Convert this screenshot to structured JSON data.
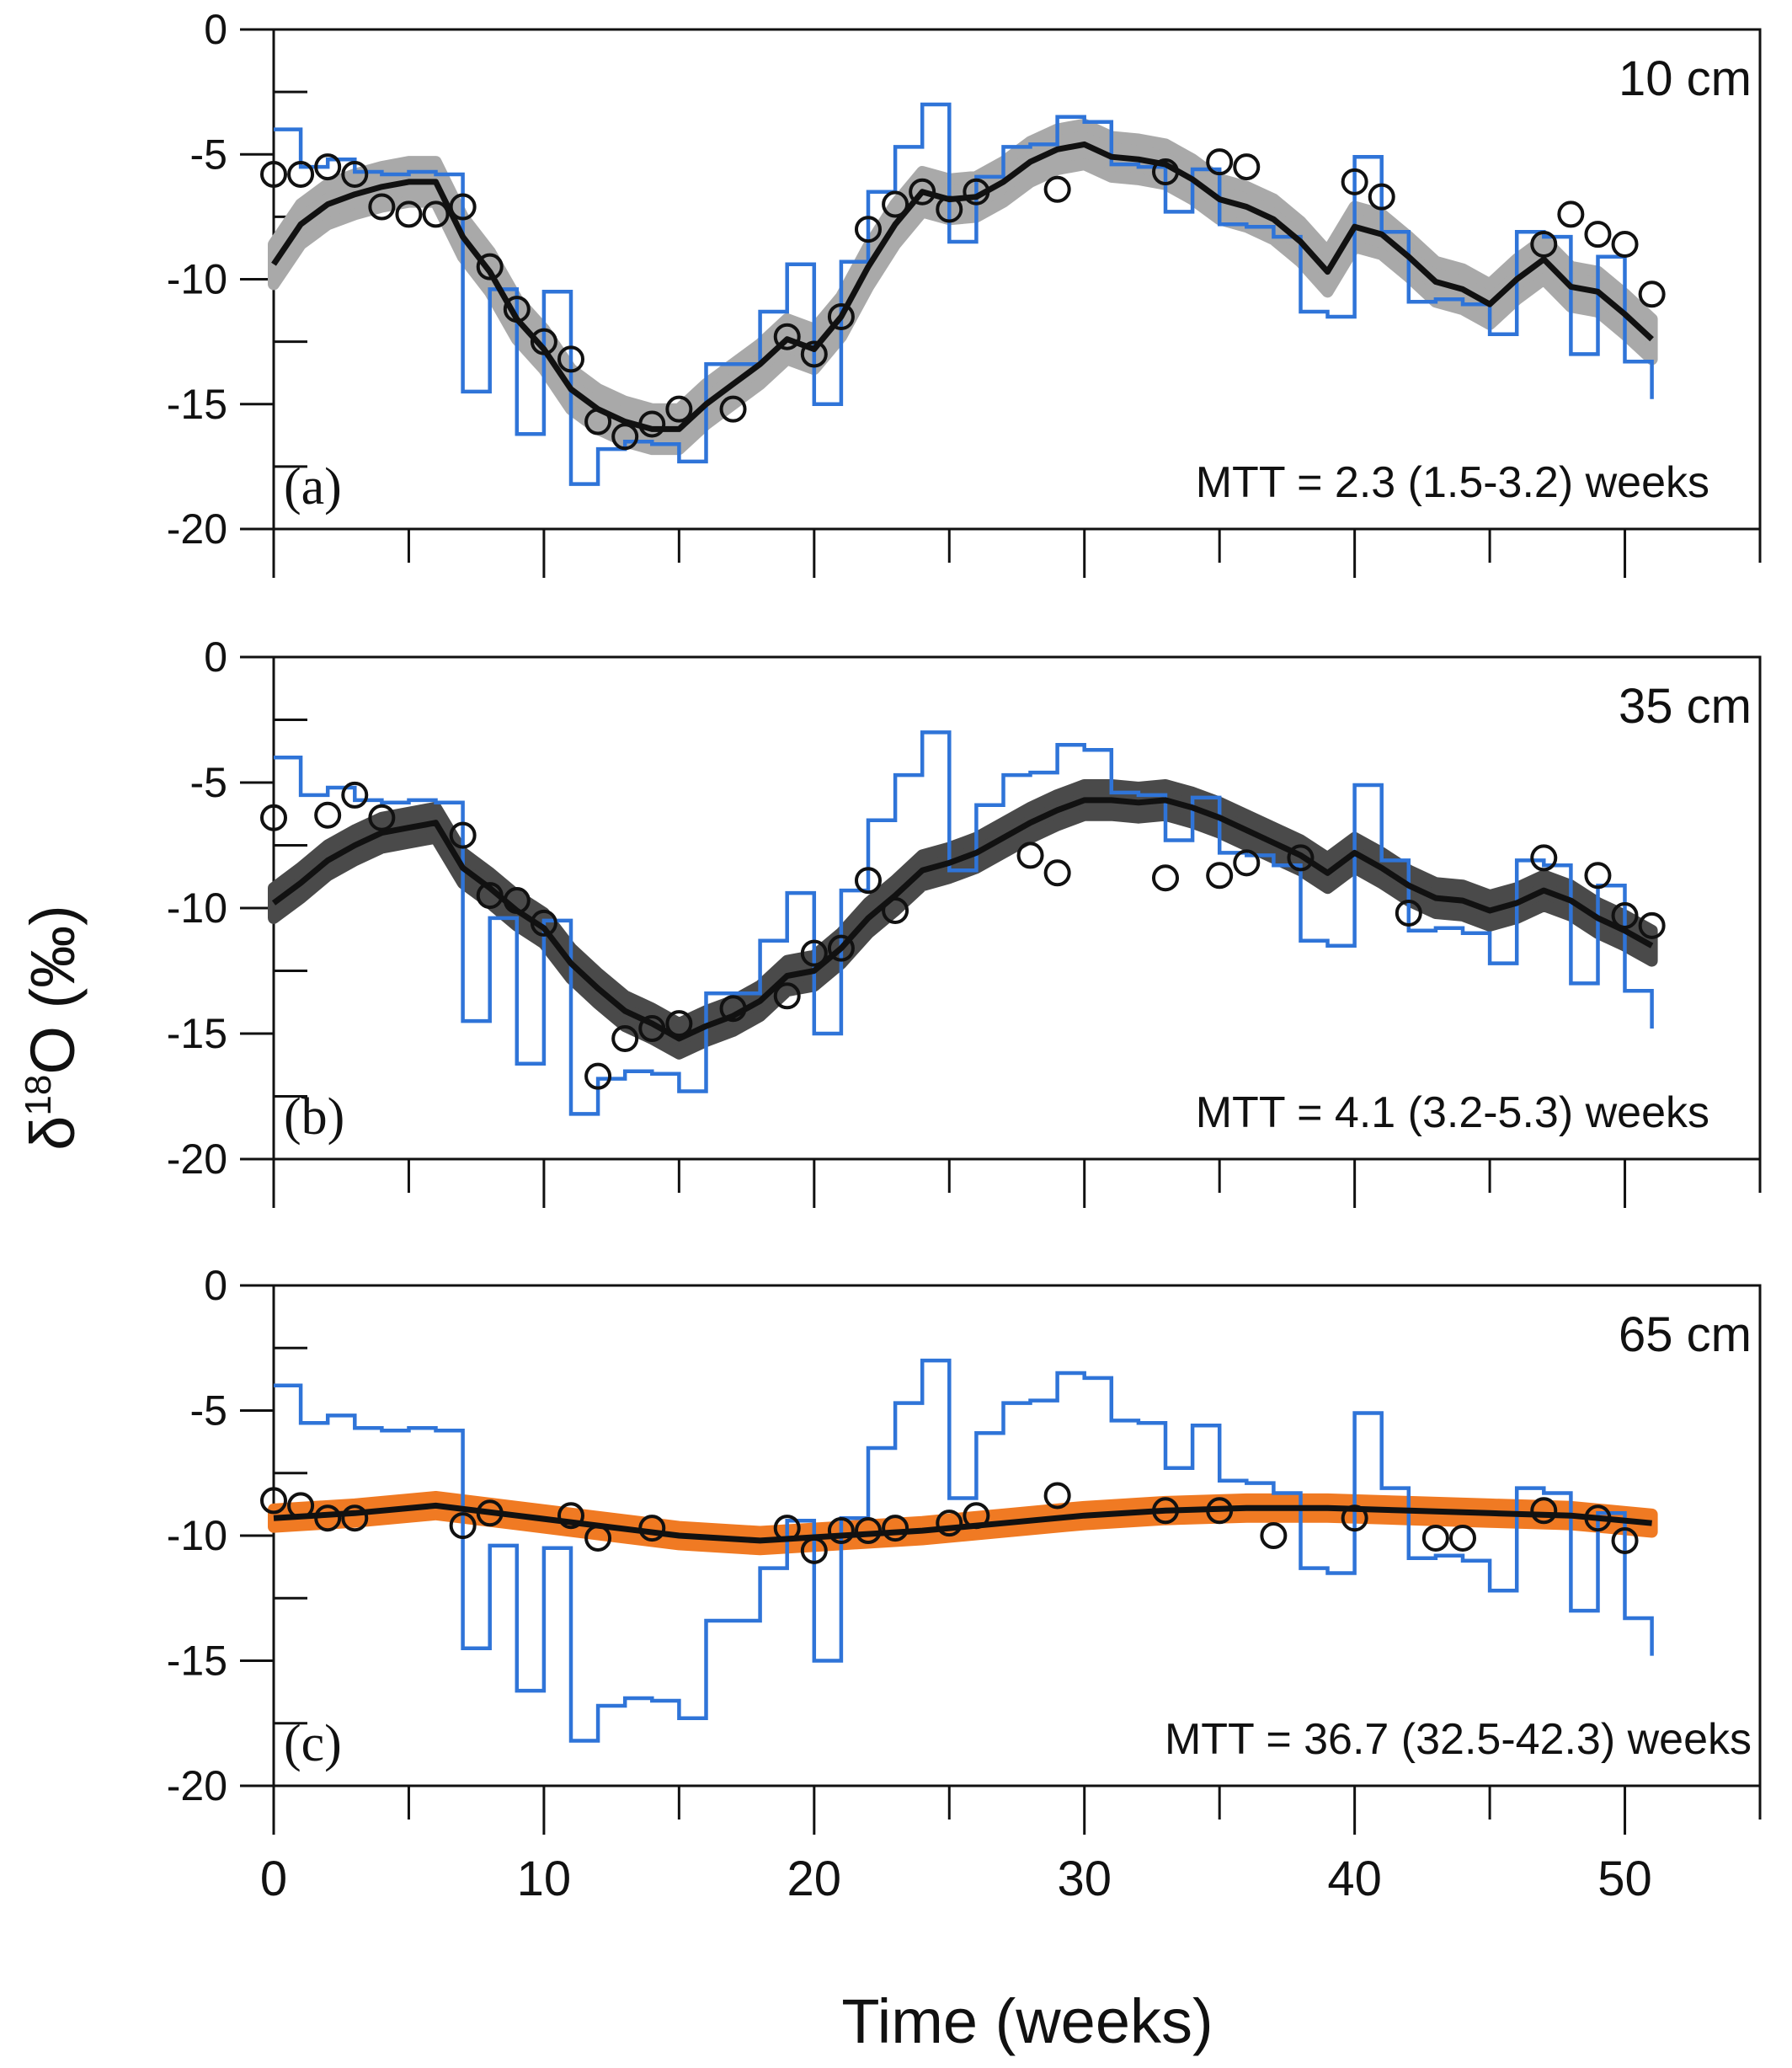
{
  "colors": {
    "input": "#2f74d8",
    "observed": "#111111",
    "model": "#111111",
    "band_a": "#a9a9a9",
    "band_b": "#4a4a4a",
    "band_c": "#f07a23",
    "axis": "#111111"
  },
  "xaxis": {
    "label": "Time (weeks)",
    "ticks": [
      "0",
      "10",
      "20",
      "30",
      "40",
      "50"
    ],
    "range": [
      0,
      55
    ]
  },
  "yaxis": {
    "label_main": "δ",
    "label_sup": "18",
    "label_rest": "O (‰)",
    "ticks": [
      "0",
      "-5",
      "-10",
      "-15",
      "-20"
    ],
    "range": [
      -20,
      0
    ]
  },
  "chart_data": [
    {
      "type": "line",
      "panel": "(a)",
      "depth": "10 cm",
      "mtt": "MTT = 2.3 (1.5-3.2) weeks",
      "ylim": [
        -20,
        0
      ],
      "xlim": [
        0,
        55
      ],
      "input_step": {
        "x": [
          0,
          1,
          2,
          3,
          4,
          5,
          6,
          7,
          8,
          9,
          10,
          11,
          12,
          13,
          14,
          15,
          16,
          17,
          18,
          19,
          20,
          21,
          22,
          23,
          24,
          25,
          26,
          27,
          28,
          29,
          30,
          31,
          32,
          33,
          34,
          35,
          36,
          37,
          38,
          39,
          40,
          41,
          42,
          43,
          44,
          45,
          46,
          47,
          48,
          49,
          50,
          51
        ],
        "y": [
          -4,
          -5.5,
          -5.2,
          -5.7,
          -5.8,
          -5.7,
          -5.8,
          -14.5,
          -10.4,
          -16.2,
          -10.5,
          -18.2,
          -16.8,
          -16.5,
          -16.6,
          -17.3,
          -13.4,
          -13.4,
          -11.3,
          -9.4,
          -15,
          -9.3,
          -6.5,
          -4.7,
          -3,
          -8.5,
          -5.9,
          -4.7,
          -4.6,
          -3.5,
          -3.7,
          -5.4,
          -5.5,
          -7.3,
          -5.6,
          -7.8,
          -7.9,
          -8.3,
          -11.3,
          -11.5,
          -5.1,
          -8.1,
          -10.9,
          -10.8,
          -11,
          -12.2,
          -8.1,
          -8.3,
          -13,
          -9.1,
          -13.3,
          -14.8
        ]
      },
      "observed": {
        "x": [
          0,
          1,
          2,
          3,
          4,
          5,
          6,
          7,
          8,
          9,
          10,
          11,
          12,
          13,
          14,
          15,
          17,
          19,
          20,
          21,
          22,
          23,
          24,
          25,
          26,
          29,
          33,
          35,
          36,
          40,
          41,
          47,
          48,
          49,
          50,
          51
        ],
        "y": [
          -5.8,
          -5.8,
          -5.5,
          -5.8,
          -7.1,
          -7.4,
          -7.4,
          -7.1,
          -9.5,
          -11.2,
          -12.5,
          -13.2,
          -15.7,
          -16.3,
          -15.8,
          -15.2,
          -15.2,
          -12.3,
          -13,
          -11.5,
          -8,
          -7,
          -6.5,
          -7.2,
          -6.5,
          -6.4,
          -5.7,
          -5.3,
          -5.5,
          -6.1,
          -6.7,
          -8.6,
          -7.4,
          -8.2,
          -8.6,
          -10.6
        ]
      },
      "model": {
        "x": [
          0,
          1,
          2,
          3,
          4,
          5,
          6,
          7,
          8,
          9,
          10,
          11,
          12,
          13,
          14,
          15,
          16,
          17,
          18,
          19,
          20,
          21,
          22,
          23,
          24,
          25,
          26,
          27,
          28,
          29,
          30,
          31,
          32,
          33,
          34,
          35,
          36,
          37,
          38,
          39,
          40,
          41,
          42,
          43,
          44,
          45,
          46,
          47,
          48,
          49,
          50,
          51
        ],
        "y": [
          -9.4,
          -7.8,
          -7,
          -6.6,
          -6.3,
          -6.1,
          -6.1,
          -8.3,
          -9.7,
          -11.6,
          -12.8,
          -14.4,
          -15.2,
          -15.7,
          -16,
          -16,
          -15,
          -14.2,
          -13.4,
          -12.4,
          -12.8,
          -11.5,
          -9.5,
          -7.8,
          -6.5,
          -6.8,
          -6.7,
          -6.1,
          -5.3,
          -4.8,
          -4.6,
          -5.1,
          -5.2,
          -5.4,
          -6,
          -6.8,
          -7.1,
          -7.6,
          -8.5,
          -9.7,
          -7.9,
          -8.2,
          -9.1,
          -10.1,
          -10.4,
          -11,
          -10,
          -9.2,
          -10.3,
          -10.5,
          -11.4,
          -12.4
        ]
      },
      "band_halfwidth": 0.8
    },
    {
      "type": "line",
      "panel": "(b)",
      "depth": "35 cm",
      "mtt": "MTT = 4.1 (3.2-5.3) weeks",
      "ylim": [
        -20,
        0
      ],
      "xlim": [
        0,
        55
      ],
      "input_step": {
        "x": [
          0,
          1,
          2,
          3,
          4,
          5,
          6,
          7,
          8,
          9,
          10,
          11,
          12,
          13,
          14,
          15,
          16,
          17,
          18,
          19,
          20,
          21,
          22,
          23,
          24,
          25,
          26,
          27,
          28,
          29,
          30,
          31,
          32,
          33,
          34,
          35,
          36,
          37,
          38,
          39,
          40,
          41,
          42,
          43,
          44,
          45,
          46,
          47,
          48,
          49,
          50,
          51
        ],
        "y": [
          -4,
          -5.5,
          -5.2,
          -5.7,
          -5.8,
          -5.7,
          -5.8,
          -14.5,
          -10.4,
          -16.2,
          -10.5,
          -18.2,
          -16.8,
          -16.5,
          -16.6,
          -17.3,
          -13.4,
          -13.4,
          -11.3,
          -9.4,
          -15,
          -9.3,
          -6.5,
          -4.7,
          -3,
          -8.5,
          -5.9,
          -4.7,
          -4.6,
          -3.5,
          -3.7,
          -5.4,
          -5.5,
          -7.3,
          -5.6,
          -7.8,
          -7.9,
          -8.3,
          -11.3,
          -11.5,
          -5.1,
          -8.1,
          -10.9,
          -10.8,
          -11,
          -12.2,
          -8.1,
          -8.3,
          -13,
          -9.1,
          -13.3,
          -14.8
        ]
      },
      "observed": {
        "x": [
          0,
          2,
          3,
          4,
          7,
          8,
          9,
          10,
          12,
          13,
          14,
          15,
          17,
          19,
          20,
          21,
          22,
          23,
          28,
          29,
          33,
          35,
          36,
          38,
          42,
          47,
          49,
          50,
          51
        ],
        "y": [
          -6.4,
          -6.3,
          -5.5,
          -6.4,
          -7.1,
          -9.5,
          -9.7,
          -10.6,
          -16.7,
          -15.2,
          -14.8,
          -14.6,
          -14,
          -13.5,
          -11.8,
          -11.6,
          -8.9,
          -10.1,
          -7.9,
          -8.6,
          -8.8,
          -8.7,
          -8.2,
          -8,
          -10.2,
          -8,
          -8.7,
          -10.3,
          -10.7
        ]
      },
      "model": {
        "x": [
          0,
          1,
          2,
          3,
          4,
          5,
          6,
          7,
          8,
          9,
          10,
          11,
          12,
          13,
          14,
          15,
          16,
          17,
          18,
          19,
          20,
          21,
          22,
          23,
          24,
          25,
          26,
          27,
          28,
          29,
          30,
          31,
          32,
          33,
          34,
          35,
          36,
          37,
          38,
          39,
          40,
          41,
          42,
          43,
          44,
          45,
          46,
          47,
          48,
          49,
          50,
          51
        ],
        "y": [
          -9.8,
          -9,
          -8.1,
          -7.5,
          -7,
          -6.8,
          -6.6,
          -8.4,
          -9.2,
          -10.1,
          -10.8,
          -12.2,
          -13.2,
          -14.1,
          -14.6,
          -15.2,
          -14.7,
          -14.3,
          -13.7,
          -12.7,
          -12.5,
          -11.6,
          -10.4,
          -9.5,
          -8.5,
          -8.2,
          -7.8,
          -7.2,
          -6.6,
          -6.1,
          -5.7,
          -5.7,
          -5.8,
          -5.7,
          -6,
          -6.4,
          -6.9,
          -7.4,
          -7.9,
          -8.6,
          -7.8,
          -8.4,
          -9.1,
          -9.6,
          -9.7,
          -10.1,
          -9.8,
          -9.3,
          -9.7,
          -10.4,
          -10.9,
          -11.5
        ]
      },
      "band_halfwidth": 0.6
    },
    {
      "type": "line",
      "panel": "(c)",
      "depth": "65 cm",
      "mtt": "MTT = 36.7 (32.5-42.3) weeks",
      "ylim": [
        -20,
        0
      ],
      "xlim": [
        0,
        55
      ],
      "input_step": {
        "x": [
          0,
          1,
          2,
          3,
          4,
          5,
          6,
          7,
          8,
          9,
          10,
          11,
          12,
          13,
          14,
          15,
          16,
          17,
          18,
          19,
          20,
          21,
          22,
          23,
          24,
          25,
          26,
          27,
          28,
          29,
          30,
          31,
          32,
          33,
          34,
          35,
          36,
          37,
          38,
          39,
          40,
          41,
          42,
          43,
          44,
          45,
          46,
          47,
          48,
          49,
          50,
          51
        ],
        "y": [
          -4,
          -5.5,
          -5.2,
          -5.7,
          -5.8,
          -5.7,
          -5.8,
          -14.5,
          -10.4,
          -16.2,
          -10.5,
          -18.2,
          -16.8,
          -16.5,
          -16.6,
          -17.3,
          -13.4,
          -13.4,
          -11.3,
          -9.4,
          -15,
          -9.3,
          -6.5,
          -4.7,
          -3,
          -8.5,
          -5.9,
          -4.7,
          -4.6,
          -3.5,
          -3.7,
          -5.4,
          -5.5,
          -7.3,
          -5.6,
          -7.8,
          -7.9,
          -8.3,
          -11.3,
          -11.5,
          -5.1,
          -8.1,
          -10.9,
          -10.8,
          -11,
          -12.2,
          -8.1,
          -8.3,
          -13,
          -9.1,
          -13.3,
          -14.8
        ]
      },
      "observed": {
        "x": [
          0,
          1,
          2,
          3,
          7,
          8,
          11,
          12,
          14,
          19,
          20,
          21,
          22,
          23,
          25,
          26,
          29,
          33,
          35,
          37,
          40,
          43,
          44,
          47,
          49,
          50
        ],
        "y": [
          -8.6,
          -8.8,
          -9.3,
          -9.3,
          -9.6,
          -9.1,
          -9.2,
          -10.1,
          -9.7,
          -9.7,
          -10.6,
          -9.8,
          -9.8,
          -9.7,
          -9.5,
          -9.2,
          -8.4,
          -9,
          -9,
          -10,
          -9.3,
          -10.1,
          -10.1,
          -9,
          -9.3,
          -10.2
        ]
      },
      "model": {
        "x": [
          0,
          3,
          6,
          9,
          12,
          15,
          18,
          21,
          24,
          27,
          30,
          33,
          36,
          39,
          42,
          45,
          48,
          51
        ],
        "y": [
          -9.3,
          -9.1,
          -8.8,
          -9.2,
          -9.6,
          -10,
          -10.2,
          -10,
          -9.8,
          -9.5,
          -9.2,
          -9,
          -8.9,
          -8.9,
          -9,
          -9.1,
          -9.2,
          -9.5
        ]
      },
      "band_halfwidth": 0.35
    }
  ]
}
